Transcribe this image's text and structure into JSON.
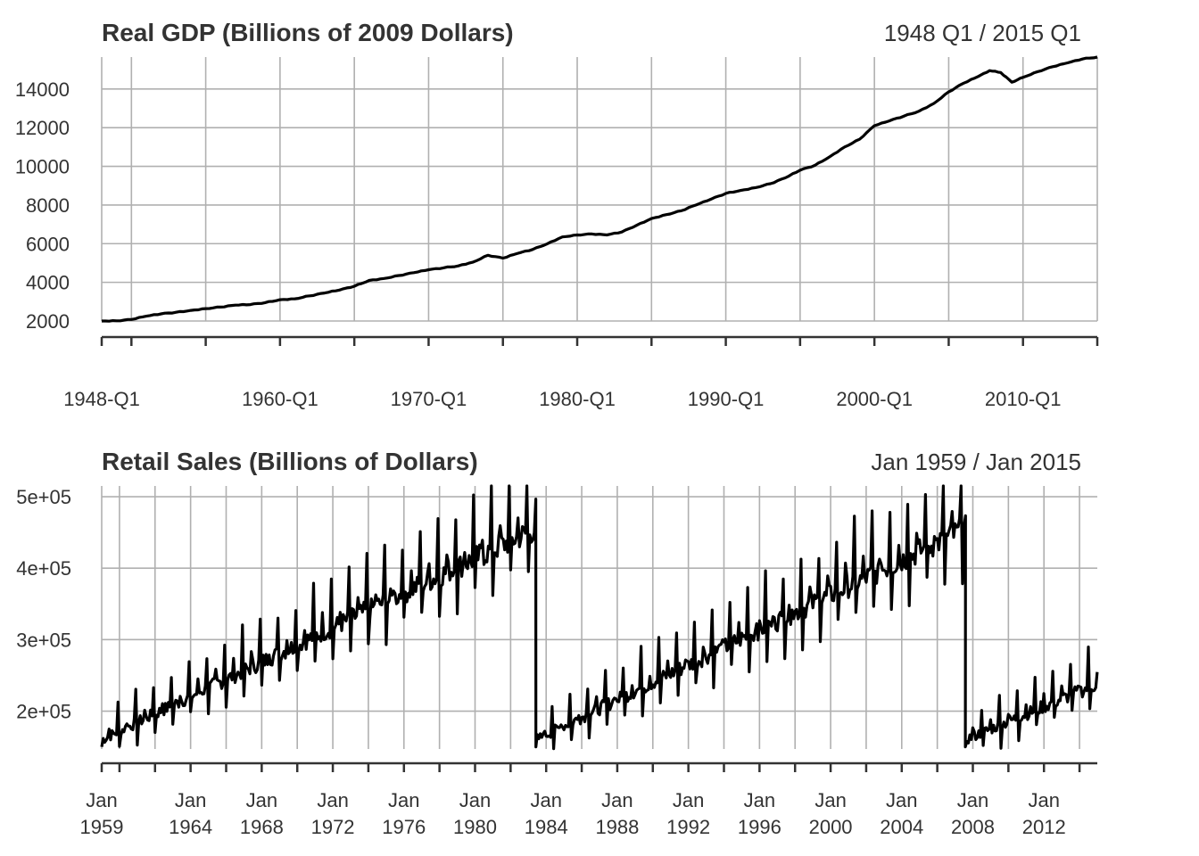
{
  "chart_data": [
    {
      "type": "line",
      "title": "Real GDP (Billions of 2009 Dollars)",
      "range_label": "1948 Q1 / 2015 Q1",
      "x_start": "1948-Q1",
      "x_end": "2015-Q1",
      "ylim": [
        2000,
        15650
      ],
      "y_ticks": [
        2000,
        4000,
        6000,
        8000,
        10000,
        12000,
        14000
      ],
      "y_tick_labels": [
        "2000",
        "4000",
        "6000",
        "8000",
        "10000",
        "12000",
        "14000"
      ],
      "x_ticks_major": [
        "1948-Q1",
        "1960-Q1",
        "1970-Q1",
        "1980-Q1",
        "1990-Q1",
        "2000-Q1",
        "2010-Q1"
      ],
      "x_tick_labels": [
        "1948-Q1",
        "1960-Q1",
        "1970-Q1",
        "1980-Q1",
        "1990-Q1",
        "2000-Q1",
        "2010-Q1"
      ],
      "x_grid": [
        1948,
        1950,
        1955,
        1960,
        1965,
        1970,
        1975,
        1980,
        1985,
        1990,
        1995,
        2000,
        2005,
        2010,
        2015
      ],
      "grid": true,
      "series": [
        {
          "x": [
            1948,
            1949,
            1950,
            1951,
            1952,
            1953,
            1954,
            1955,
            1956,
            1957,
            1958,
            1959,
            1960,
            1961,
            1962,
            1963,
            1964,
            1965,
            1966,
            1967,
            1968,
            1969,
            1970,
            1971,
            1972,
            1973,
            1974,
            1975,
            1976,
            1977,
            1978,
            1979,
            1980,
            1981,
            1982,
            1983,
            1984,
            1985,
            1986,
            1987,
            1988,
            1989,
            1990,
            1991,
            1992,
            1993,
            1994,
            1995,
            1996,
            1997,
            1998,
            1999,
            2000,
            2001,
            2002,
            2003,
            2004,
            2005,
            2006,
            2007,
            2007.75,
            2008.5,
            2009.25,
            2010,
            2011,
            2012,
            2013,
            2014,
            2015
          ],
          "values": [
            2000,
            2010,
            2080,
            2250,
            2370,
            2450,
            2550,
            2640,
            2720,
            2820,
            2850,
            2950,
            3100,
            3150,
            3300,
            3450,
            3600,
            3800,
            4100,
            4200,
            4350,
            4500,
            4650,
            4750,
            4850,
            5050,
            5400,
            5250,
            5500,
            5700,
            6000,
            6350,
            6450,
            6500,
            6450,
            6600,
            6950,
            7300,
            7500,
            7700,
            8000,
            8300,
            8600,
            8750,
            8900,
            9100,
            9400,
            9800,
            10050,
            10500,
            11000,
            11400,
            12100,
            12350,
            12600,
            12850,
            13250,
            13850,
            14300,
            14650,
            14950,
            14850,
            14350,
            14600,
            14900,
            15150,
            15350,
            15550,
            15650
          ]
        }
      ]
    },
    {
      "type": "line",
      "title": "Retail Sales (Billions of Dollars)",
      "range_label": "Jan 1959 / Jan 2015",
      "x_start": "Jan 1959",
      "x_end": "Jan 2015",
      "ylim": [
        147000,
        515000
      ],
      "y_ticks": [
        200000,
        300000,
        400000,
        500000
      ],
      "y_tick_labels": [
        "2e+05",
        "3e+05",
        "4e+05",
        "5e+05"
      ],
      "x_ticks_major": [
        "Jan 1959",
        "Jan 1964",
        "Jan 1968",
        "Jan 1972",
        "Jan 1976",
        "Jan 1980",
        "Jan 1984",
        "Jan 1988",
        "Jan 1992",
        "Jan 1996",
        "Jan 2000",
        "Jan 2004",
        "Jan 2008",
        "Jan 2012"
      ],
      "x_tick_labels": [
        [
          "Jan",
          "1959"
        ],
        [
          "Jan",
          "1964"
        ],
        [
          "Jan",
          "1968"
        ],
        [
          "Jan",
          "1972"
        ],
        [
          "Jan",
          "1976"
        ],
        [
          "Jan",
          "1980"
        ],
        [
          "Jan",
          "1984"
        ],
        [
          "Jan",
          "1988"
        ],
        [
          "Jan",
          "1992"
        ],
        [
          "Jan",
          "1996"
        ],
        [
          "Jan",
          "2000"
        ],
        [
          "Jan",
          "2004"
        ],
        [
          "Jan",
          "2008"
        ],
        [
          "Jan",
          "2012"
        ]
      ],
      "x_grid": [
        1959,
        1960,
        1962,
        1964,
        1966,
        1968,
        1970,
        1972,
        1974,
        1976,
        1978,
        1980,
        1982,
        1984,
        1986,
        1988,
        1990,
        1992,
        1994,
        1996,
        1998,
        2000,
        2002,
        2004,
        2006,
        2008,
        2010,
        2012,
        2014
      ],
      "grid": true,
      "series": [
        {
          "note_pattern": "monthly with strong seasonal spikes; sawtooth restarts in Jan 1984 and Jan 2008",
          "segments": [
            {
              "from": 1959,
              "to": 1983.42,
              "start": 160000,
              "end": 455000
            },
            {
              "from": 1983.42,
              "to": 2007.58,
              "start": 160000,
              "end": 455000
            },
            {
              "from": 2007.58,
              "to": 2015,
              "start": 160000,
              "end": 238000
            }
          ]
        }
      ]
    }
  ]
}
